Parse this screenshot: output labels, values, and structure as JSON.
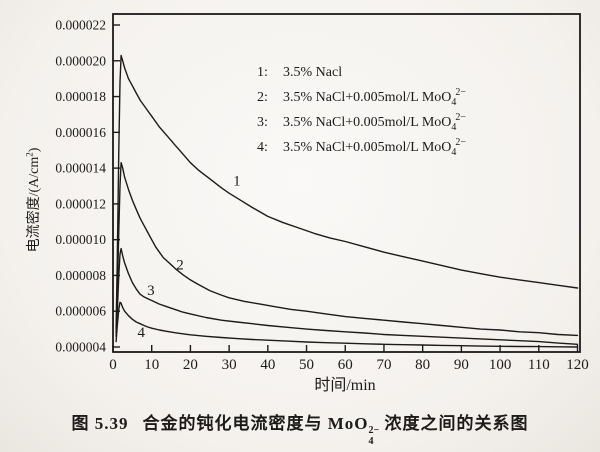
{
  "axes": {
    "y_title_pre": "电流密度/(A/cm",
    "y_title_sup": "2",
    "y_title_post": ")",
    "x_title": "时间/min"
  },
  "legend": {
    "entries": [
      {
        "num": "1:",
        "pre": "3.5% Nacl",
        "has_formula": false,
        "formula_base": "",
        "formula_sub": "",
        "formula_sup": ""
      },
      {
        "num": "2:",
        "pre": "3.5% NaCl+0.005mol/L ",
        "has_formula": true,
        "formula_base": "MoO",
        "formula_sub": "4",
        "formula_sup": "2−"
      },
      {
        "num": "3:",
        "pre": "3.5% NaCl+0.005mol/L ",
        "has_formula": true,
        "formula_base": "MoO",
        "formula_sub": "4",
        "formula_sup": "2−"
      },
      {
        "num": "4:",
        "pre": "3.5% NaCl+0.005mol/L ",
        "has_formula": true,
        "formula_base": "MoO",
        "formula_sub": "4",
        "formula_sup": "2−"
      }
    ]
  },
  "caption": {
    "fig_label": "图 5.39",
    "pre": "合金的钝化电流密度与 ",
    "formula_base": "MoO",
    "formula_sup": "2−",
    "formula_sub": "4",
    "post": " 浓度之间的关系图"
  },
  "chart_data": {
    "type": "line",
    "title": "图5.39 合金的钝化电流密度与MoO4(2-)浓度之间的关系图",
    "xlabel": "时间/min",
    "ylabel": "电流密度/(A/cm2)",
    "xlim": [
      0,
      120
    ],
    "ylim": [
      4e-06,
      2.2e-05
    ],
    "grid": false,
    "legend_position": "inside upper right",
    "x_ticks": [
      0,
      10,
      20,
      30,
      40,
      50,
      60,
      70,
      80,
      90,
      100,
      110,
      120
    ],
    "y_tick_labels": [
      "0.000022",
      "0.000020",
      "0.000018",
      "0.000016",
      "0.000014",
      "0.000012",
      "0.000010",
      "0.000008",
      "0.000006",
      "0.000004"
    ],
    "values_unit": "1e-6 A/cm2",
    "line_color": "#1d1b19",
    "series": [
      {
        "name": "1",
        "legend": "3.5% Nacl",
        "label_pos": [
          32,
          13.3
        ],
        "points": [
          [
            0.8,
            5.0
          ],
          [
            1.1,
            9.0
          ],
          [
            1.5,
            15.0
          ],
          [
            1.8,
            18.8
          ],
          [
            2.1,
            20.3
          ],
          [
            2.5,
            20.0
          ],
          [
            3,
            19.6
          ],
          [
            4,
            19.0
          ],
          [
            5,
            18.6
          ],
          [
            6,
            18.2
          ],
          [
            7,
            17.8
          ],
          [
            8,
            17.5
          ],
          [
            9,
            17.2
          ],
          [
            10,
            16.9
          ],
          [
            12,
            16.3
          ],
          [
            14,
            15.8
          ],
          [
            16,
            15.3
          ],
          [
            18,
            14.8
          ],
          [
            20,
            14.3
          ],
          [
            22,
            13.9
          ],
          [
            25,
            13.4
          ],
          [
            28,
            12.9
          ],
          [
            30,
            12.6
          ],
          [
            33,
            12.2
          ],
          [
            36,
            11.8
          ],
          [
            40,
            11.3
          ],
          [
            44,
            10.95
          ],
          [
            48,
            10.65
          ],
          [
            52,
            10.35
          ],
          [
            56,
            10.1
          ],
          [
            60,
            9.9
          ],
          [
            65,
            9.6
          ],
          [
            70,
            9.3
          ],
          [
            75,
            9.05
          ],
          [
            80,
            8.8
          ],
          [
            85,
            8.55
          ],
          [
            90,
            8.3
          ],
          [
            95,
            8.1
          ],
          [
            100,
            7.9
          ],
          [
            105,
            7.75
          ],
          [
            110,
            7.6
          ],
          [
            115,
            7.45
          ],
          [
            120,
            7.3
          ]
        ]
      },
      {
        "name": "2",
        "legend": "3.5% NaCl+0.005mol/L MoO4(2-)",
        "label_pos": [
          17.3,
          8.6
        ],
        "points": [
          [
            0.8,
            4.8
          ],
          [
            1.1,
            7.0
          ],
          [
            1.5,
            10.5
          ],
          [
            1.8,
            13.0
          ],
          [
            2.1,
            14.3
          ],
          [
            2.5,
            14.0
          ],
          [
            3,
            13.5
          ],
          [
            4,
            12.8
          ],
          [
            5,
            12.2
          ],
          [
            6,
            11.7
          ],
          [
            7,
            11.2
          ],
          [
            8,
            10.8
          ],
          [
            9,
            10.4
          ],
          [
            10,
            10.0
          ],
          [
            11,
            9.6
          ],
          [
            12,
            9.3
          ],
          [
            13,
            9.0
          ],
          [
            14,
            8.8
          ],
          [
            15,
            8.6
          ],
          [
            16,
            8.4
          ],
          [
            18,
            8.05
          ],
          [
            20,
            7.75
          ],
          [
            22,
            7.5
          ],
          [
            25,
            7.15
          ],
          [
            28,
            6.9
          ],
          [
            30,
            6.75
          ],
          [
            34,
            6.55
          ],
          [
            38,
            6.4
          ],
          [
            42,
            6.25
          ],
          [
            46,
            6.1
          ],
          [
            50,
            6.0
          ],
          [
            55,
            5.85
          ],
          [
            60,
            5.7
          ],
          [
            65,
            5.6
          ],
          [
            70,
            5.5
          ],
          [
            75,
            5.4
          ],
          [
            80,
            5.3
          ],
          [
            85,
            5.2
          ],
          [
            90,
            5.1
          ],
          [
            95,
            5.0
          ],
          [
            100,
            4.95
          ],
          [
            105,
            4.85
          ],
          [
            110,
            4.8
          ],
          [
            115,
            4.7
          ],
          [
            120,
            4.65
          ]
        ]
      },
      {
        "name": "3",
        "legend": "3.5% NaCl+0.005mol/L MoO4(2-)",
        "label_pos": [
          9.8,
          7.2
        ],
        "points": [
          [
            0.8,
            4.6
          ],
          [
            1.1,
            6.0
          ],
          [
            1.5,
            8.0
          ],
          [
            1.8,
            9.2
          ],
          [
            2.1,
            9.5
          ],
          [
            2.5,
            9.1
          ],
          [
            3,
            8.7
          ],
          [
            4,
            8.1
          ],
          [
            5,
            7.6
          ],
          [
            6,
            7.25
          ],
          [
            7,
            6.95
          ],
          [
            8,
            6.8
          ],
          [
            9,
            6.7
          ],
          [
            10,
            6.6
          ],
          [
            12,
            6.4
          ],
          [
            14,
            6.25
          ],
          [
            16,
            6.1
          ],
          [
            18,
            5.95
          ],
          [
            20,
            5.85
          ],
          [
            24,
            5.65
          ],
          [
            28,
            5.5
          ],
          [
            32,
            5.4
          ],
          [
            36,
            5.3
          ],
          [
            40,
            5.2
          ],
          [
            45,
            5.1
          ],
          [
            50,
            5.0
          ],
          [
            55,
            4.92
          ],
          [
            60,
            4.85
          ],
          [
            65,
            4.78
          ],
          [
            70,
            4.7
          ],
          [
            75,
            4.65
          ],
          [
            80,
            4.6
          ],
          [
            85,
            4.55
          ],
          [
            90,
            4.5
          ],
          [
            95,
            4.45
          ],
          [
            100,
            4.4
          ],
          [
            105,
            4.35
          ],
          [
            110,
            4.3
          ],
          [
            115,
            4.22
          ],
          [
            120,
            4.15
          ]
        ]
      },
      {
        "name": "4",
        "legend": "3.5% NaCl+0.005mol/L MoO4(2-)",
        "label_pos": [
          7.3,
          4.85
        ],
        "points": [
          [
            0.8,
            4.3
          ],
          [
            1.1,
            5.2
          ],
          [
            1.5,
            6.1
          ],
          [
            1.8,
            6.5
          ],
          [
            2.1,
            6.45
          ],
          [
            2.5,
            6.2
          ],
          [
            3,
            6.0
          ],
          [
            4,
            5.75
          ],
          [
            5,
            5.55
          ],
          [
            6,
            5.4
          ],
          [
            7,
            5.3
          ],
          [
            8,
            5.2
          ],
          [
            9,
            5.12
          ],
          [
            10,
            5.05
          ],
          [
            12,
            4.95
          ],
          [
            14,
            4.87
          ],
          [
            16,
            4.8
          ],
          [
            18,
            4.74
          ],
          [
            20,
            4.68
          ],
          [
            24,
            4.6
          ],
          [
            28,
            4.53
          ],
          [
            32,
            4.47
          ],
          [
            36,
            4.42
          ],
          [
            40,
            4.38
          ],
          [
            45,
            4.33
          ],
          [
            50,
            4.28
          ],
          [
            55,
            4.24
          ],
          [
            60,
            4.21
          ],
          [
            65,
            4.18
          ],
          [
            70,
            4.15
          ],
          [
            75,
            4.13
          ],
          [
            80,
            4.11
          ],
          [
            85,
            4.09
          ],
          [
            90,
            4.07
          ],
          [
            95,
            4.05
          ],
          [
            100,
            4.04
          ],
          [
            105,
            4.03
          ],
          [
            110,
            4.02
          ],
          [
            115,
            4.01
          ],
          [
            120,
            4.0
          ]
        ]
      }
    ]
  }
}
